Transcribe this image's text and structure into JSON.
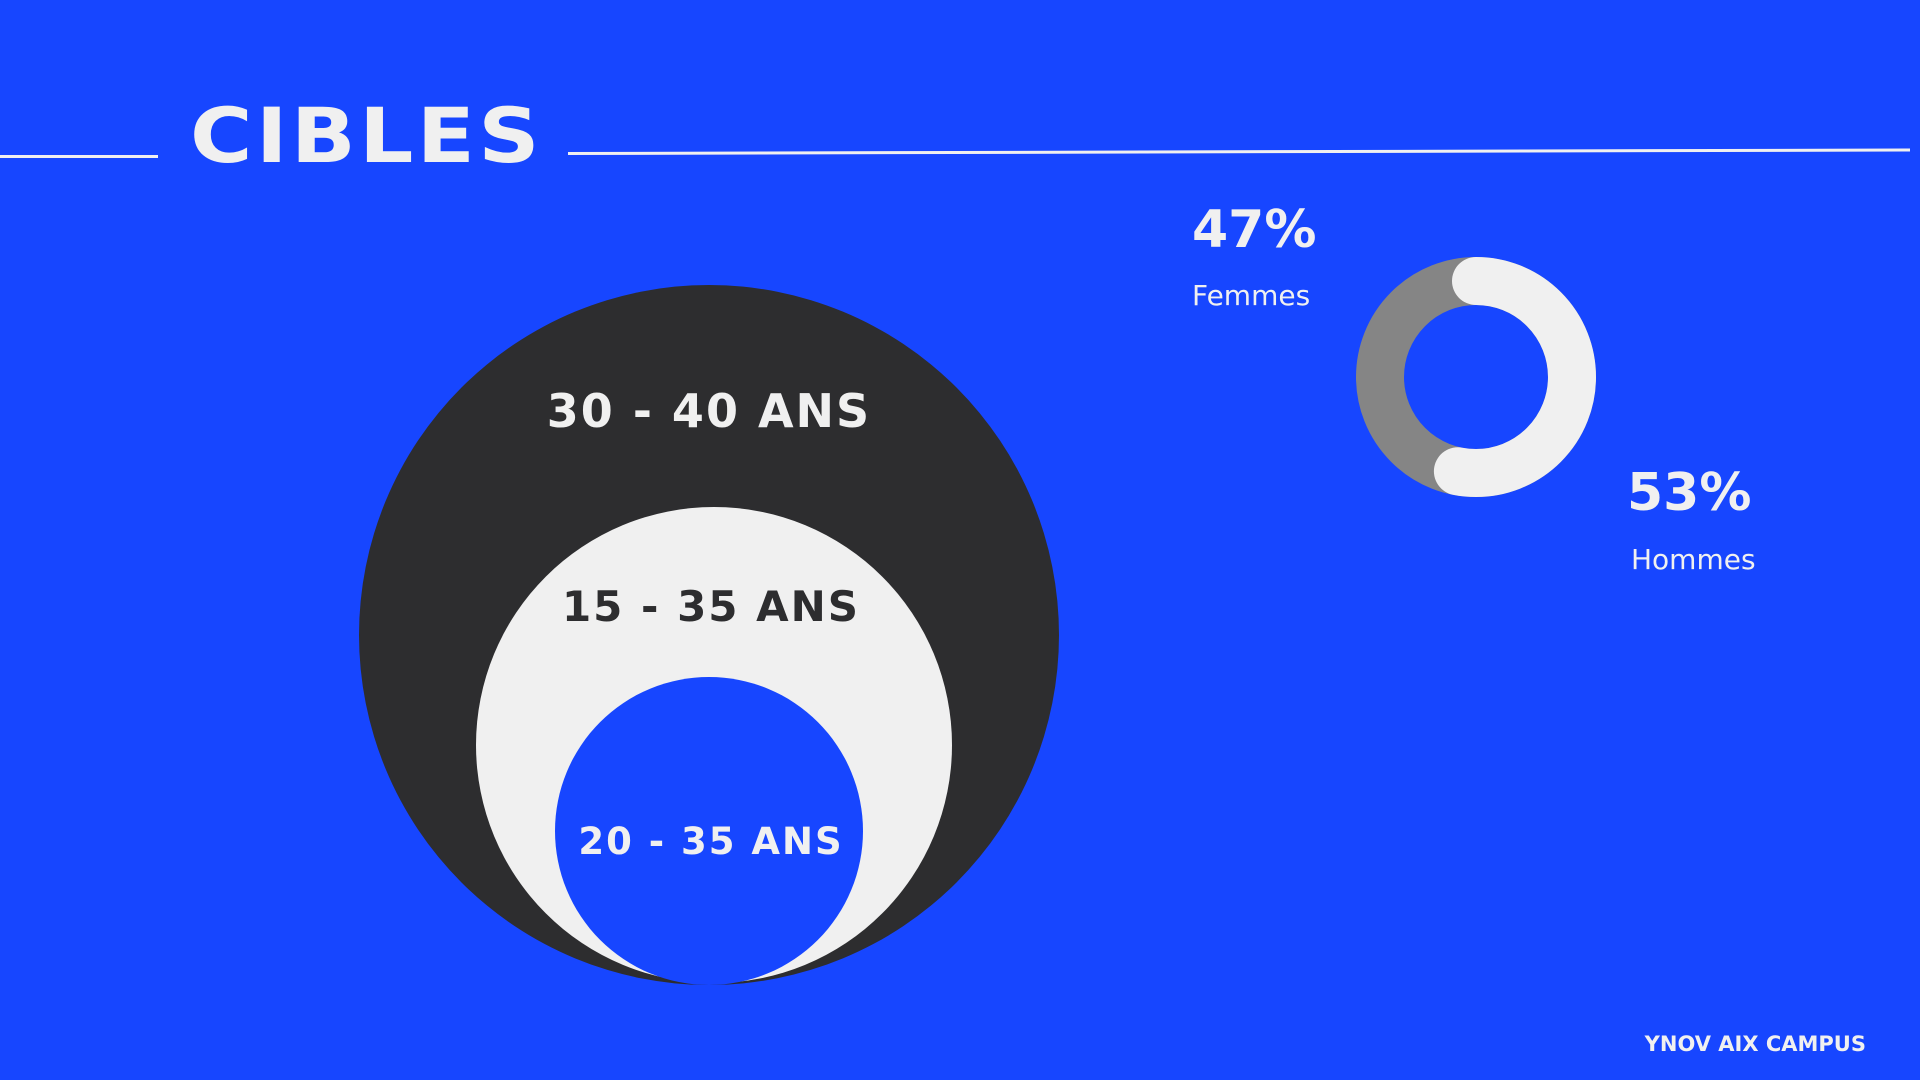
{
  "slide": {
    "title": "CIBLES",
    "footer": "YNOV AIX CAMPUS"
  },
  "colors": {
    "background": "#1746ff",
    "dark": "#2d2d2f",
    "light": "#f0f0f0",
    "grey": "#858585",
    "blue": "#1746ff"
  },
  "age_targets": [
    {
      "label": "30 - 40 ANS"
    },
    {
      "label": "15 - 35 ANS"
    },
    {
      "label": "20 - 35 ANS"
    }
  ],
  "gender": {
    "femmes": {
      "pct_label": "47%",
      "label": "Femmes",
      "value": 47
    },
    "hommes": {
      "pct_label": "53%",
      "label": "Hommes",
      "value": 53
    }
  }
}
